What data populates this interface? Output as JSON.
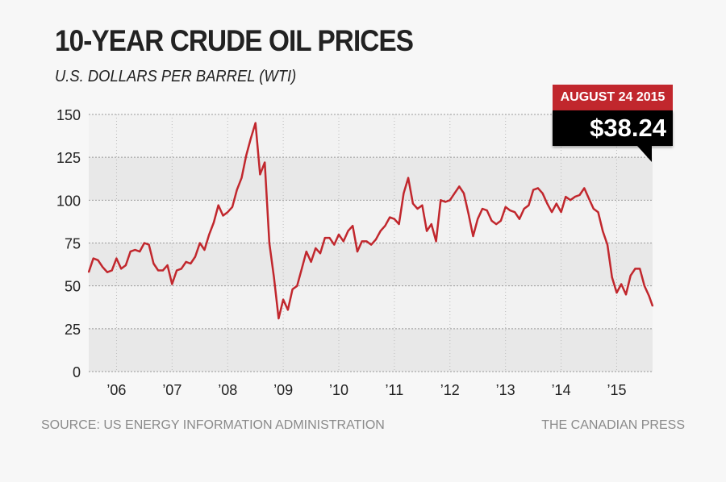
{
  "title": "10-YEAR CRUDE OIL PRICES",
  "subtitle": "U.S. DOLLARS PER BARREL (WTI)",
  "source": "SOURCE: US ENERGY INFORMATION ADMINISTRATION",
  "credit": "THE CANADIAN PRESS",
  "callout": {
    "date": "AUGUST 24 2015",
    "price": "$38.24"
  },
  "colors": {
    "line": "#c1272d",
    "callout_date_bg": "#c1272d",
    "callout_price_bg": "#000000",
    "band_light": "#f2f2f2",
    "band_dark": "#e8e8e8"
  },
  "chart_data": {
    "type": "line",
    "title": "10-YEAR CRUDE OIL PRICES",
    "ylabel": "U.S. DOLLARS PER BARREL (WTI)",
    "ylim": [
      0,
      150
    ],
    "yticks": [
      0,
      25,
      50,
      75,
      100,
      125,
      150
    ],
    "xlim": [
      "2005-07",
      "2015-08-24"
    ],
    "xticks": [
      {
        "date": "2006-01",
        "label": "’06"
      },
      {
        "date": "2007-01",
        "label": "’07"
      },
      {
        "date": "2008-01",
        "label": "’08"
      },
      {
        "date": "2009-01",
        "label": "’09"
      },
      {
        "date": "2010-01",
        "label": "’10"
      },
      {
        "date": "2011-01",
        "label": "’11"
      },
      {
        "date": "2012-01",
        "label": "’12"
      },
      {
        "date": "2013-01",
        "label": "’13"
      },
      {
        "date": "2014-01",
        "label": "’14"
      },
      {
        "date": "2015-01",
        "label": "’15"
      }
    ],
    "grid": true,
    "series": [
      {
        "points": [
          [
            "2005-07",
            58
          ],
          [
            "2005-08",
            66
          ],
          [
            "2005-09",
            65
          ],
          [
            "2005-10",
            61
          ],
          [
            "2005-11",
            58
          ],
          [
            "2005-12",
            59
          ],
          [
            "2006-01",
            66
          ],
          [
            "2006-02",
            60
          ],
          [
            "2006-03",
            62
          ],
          [
            "2006-04",
            70
          ],
          [
            "2006-05",
            71
          ],
          [
            "2006-06",
            70
          ],
          [
            "2006-07",
            75
          ],
          [
            "2006-08",
            74
          ],
          [
            "2006-09",
            63
          ],
          [
            "2006-10",
            59
          ],
          [
            "2006-11",
            59
          ],
          [
            "2006-12",
            62
          ],
          [
            "2007-01",
            51
          ],
          [
            "2007-02",
            59
          ],
          [
            "2007-03",
            60
          ],
          [
            "2007-04",
            64
          ],
          [
            "2007-05",
            63
          ],
          [
            "2007-06",
            67
          ],
          [
            "2007-07",
            75
          ],
          [
            "2007-08",
            71
          ],
          [
            "2007-09",
            80
          ],
          [
            "2007-10",
            87
          ],
          [
            "2007-11",
            97
          ],
          [
            "2007-12",
            91
          ],
          [
            "2008-01",
            93
          ],
          [
            "2008-02",
            96
          ],
          [
            "2008-03",
            106
          ],
          [
            "2008-04",
            113
          ],
          [
            "2008-05",
            126
          ],
          [
            "2008-06",
            136
          ],
          [
            "2008-07",
            145
          ],
          [
            "2008-08",
            115
          ],
          [
            "2008-09",
            122
          ],
          [
            "2008-10",
            75
          ],
          [
            "2008-11",
            55
          ],
          [
            "2008-12",
            31
          ],
          [
            "2009-01",
            42
          ],
          [
            "2009-02",
            36
          ],
          [
            "2009-03",
            48
          ],
          [
            "2009-04",
            50
          ],
          [
            "2009-05",
            60
          ],
          [
            "2009-06",
            70
          ],
          [
            "2009-07",
            64
          ],
          [
            "2009-08",
            72
          ],
          [
            "2009-09",
            69
          ],
          [
            "2009-10",
            78
          ],
          [
            "2009-11",
            78
          ],
          [
            "2009-12",
            74
          ],
          [
            "2010-01",
            80
          ],
          [
            "2010-02",
            76
          ],
          [
            "2010-03",
            82
          ],
          [
            "2010-04",
            85
          ],
          [
            "2010-05",
            70
          ],
          [
            "2010-06",
            76
          ],
          [
            "2010-07",
            76
          ],
          [
            "2010-08",
            74
          ],
          [
            "2010-09",
            77
          ],
          [
            "2010-10",
            82
          ],
          [
            "2010-11",
            85
          ],
          [
            "2010-12",
            90
          ],
          [
            "2011-01",
            89
          ],
          [
            "2011-02",
            86
          ],
          [
            "2011-03",
            104
          ],
          [
            "2011-04",
            113
          ],
          [
            "2011-05",
            98
          ],
          [
            "2011-06",
            95
          ],
          [
            "2011-07",
            97
          ],
          [
            "2011-08",
            82
          ],
          [
            "2011-09",
            86
          ],
          [
            "2011-10",
            76
          ],
          [
            "2011-11",
            100
          ],
          [
            "2011-12",
            99
          ],
          [
            "2012-01",
            100
          ],
          [
            "2012-02",
            104
          ],
          [
            "2012-03",
            108
          ],
          [
            "2012-04",
            104
          ],
          [
            "2012-05",
            92
          ],
          [
            "2012-06",
            79
          ],
          [
            "2012-07",
            89
          ],
          [
            "2012-08",
            95
          ],
          [
            "2012-09",
            94
          ],
          [
            "2012-10",
            88
          ],
          [
            "2012-11",
            86
          ],
          [
            "2012-12",
            88
          ],
          [
            "2013-01",
            96
          ],
          [
            "2013-02",
            94
          ],
          [
            "2013-03",
            93
          ],
          [
            "2013-04",
            89
          ],
          [
            "2013-05",
            95
          ],
          [
            "2013-06",
            97
          ],
          [
            "2013-07",
            106
          ],
          [
            "2013-08",
            107
          ],
          [
            "2013-09",
            104
          ],
          [
            "2013-10",
            98
          ],
          [
            "2013-11",
            93
          ],
          [
            "2013-12",
            98
          ],
          [
            "2014-01",
            93
          ],
          [
            "2014-02",
            102
          ],
          [
            "2014-03",
            100
          ],
          [
            "2014-04",
            102
          ],
          [
            "2014-05",
            103
          ],
          [
            "2014-06",
            107
          ],
          [
            "2014-07",
            101
          ],
          [
            "2014-08",
            95
          ],
          [
            "2014-09",
            93
          ],
          [
            "2014-10",
            82
          ],
          [
            "2014-11",
            74
          ],
          [
            "2014-12",
            55
          ],
          [
            "2015-01",
            46
          ],
          [
            "2015-02",
            51
          ],
          [
            "2015-03",
            45
          ],
          [
            "2015-04",
            56
          ],
          [
            "2015-05",
            60
          ],
          [
            "2015-06",
            60
          ],
          [
            "2015-07",
            50
          ],
          [
            "2015-08",
            44
          ],
          [
            "2015-08-24",
            38.24
          ]
        ]
      }
    ]
  }
}
